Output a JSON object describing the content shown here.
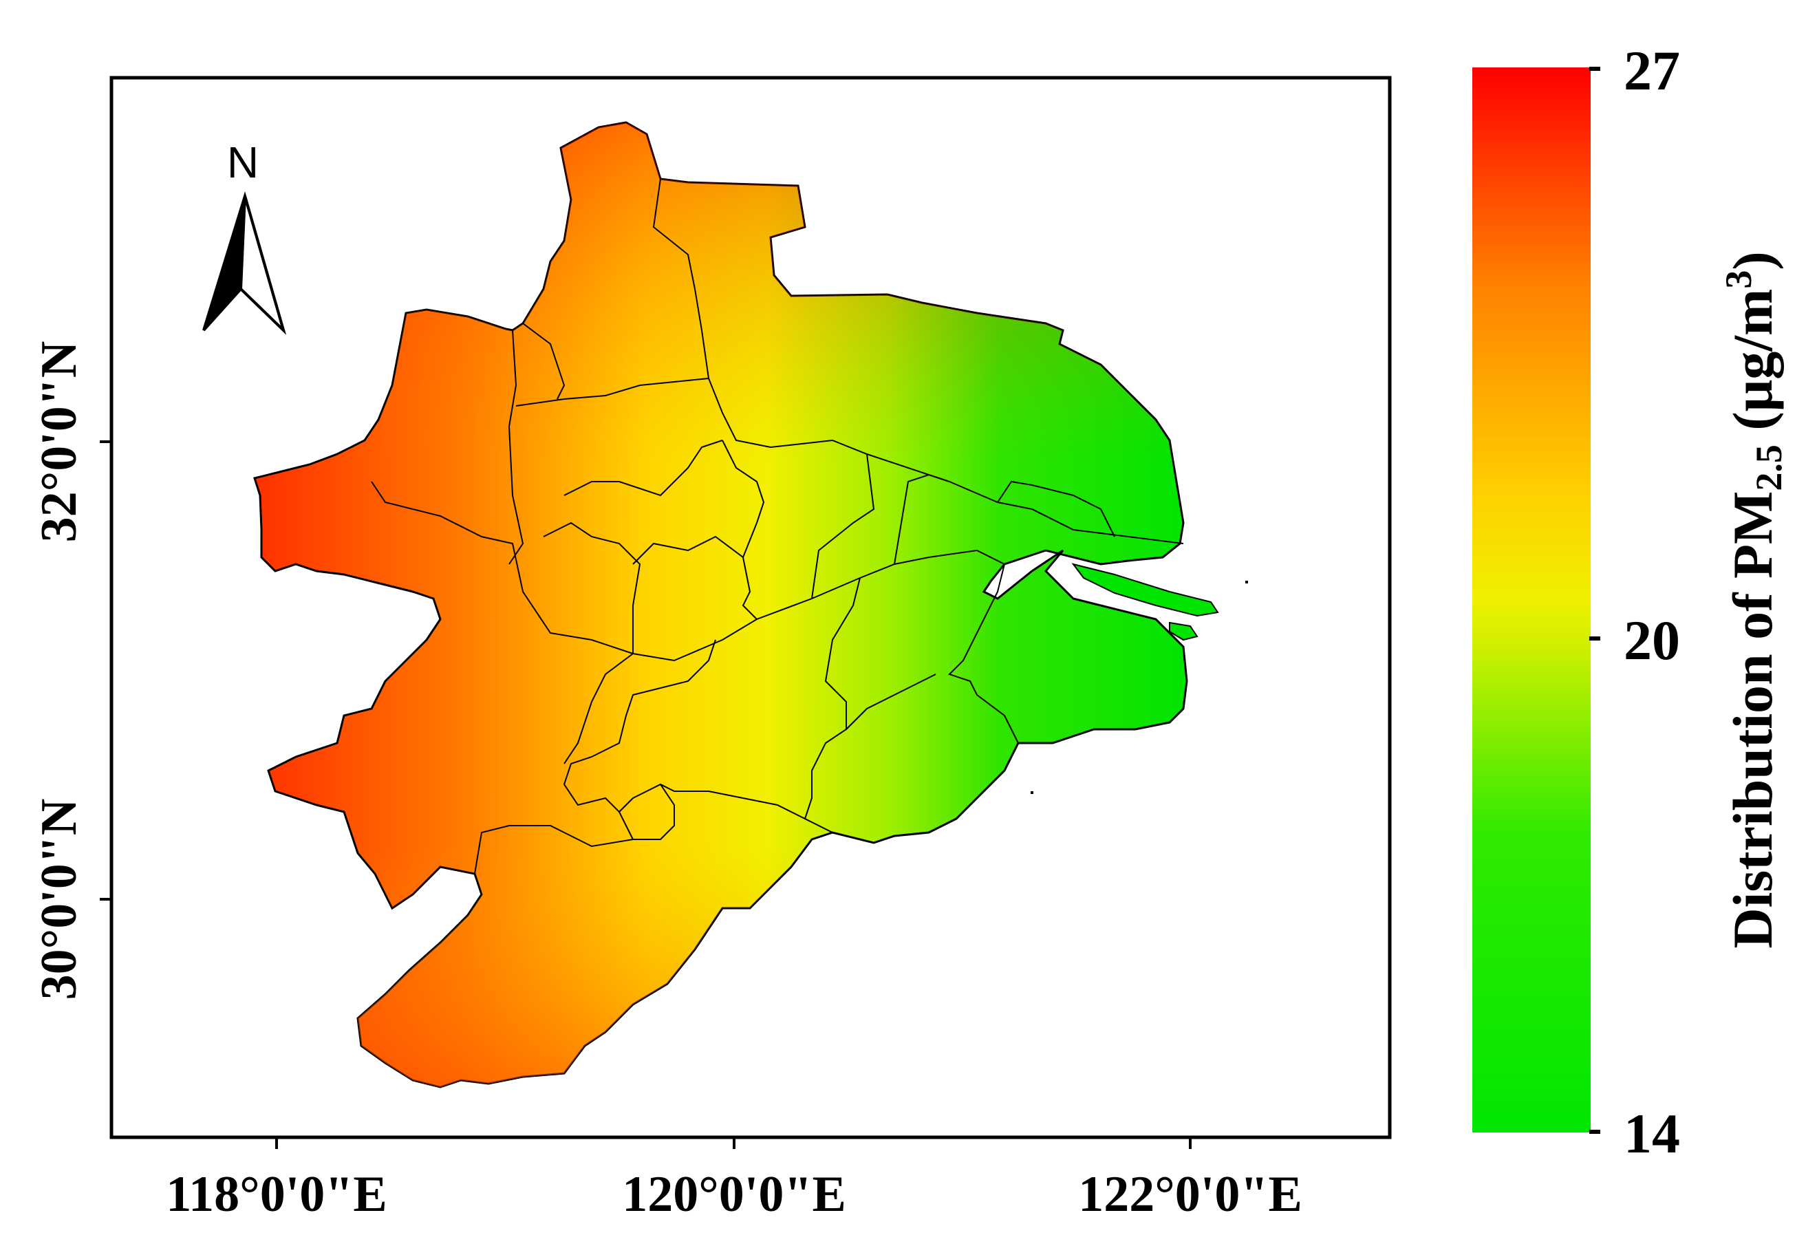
{
  "map": {
    "north_arrow_label": "N",
    "x_axis_ticks": [
      "118°0'0\"E",
      "120°0'0\"E",
      "122°0'0\"E"
    ],
    "y_axis_ticks": [
      "32°0'0\"N",
      "30°0'0\"N"
    ],
    "extent": {
      "lon_range": [
        117.3,
        122.9
      ],
      "lat_range": [
        28.95,
        33.6
      ]
    }
  },
  "colorbar": {
    "title_prefix": "Distribution of PM",
    "title_subscript": "2.5",
    "title_unit_open": " (μg/m",
    "title_unit_superscript": "3",
    "title_unit_close": ")",
    "tick_labels": [
      "27",
      "20",
      "14"
    ],
    "min": 14,
    "max": 27,
    "colors": {
      "high": "#ff0000",
      "mid_high": "#ff8000",
      "mid": "#ffe600",
      "mid_low": "#d8f000",
      "low": "#00e600"
    }
  }
}
